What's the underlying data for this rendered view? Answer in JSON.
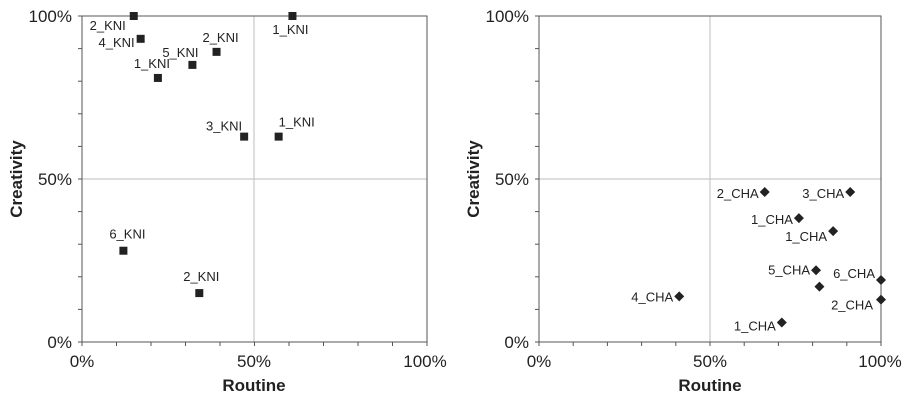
{
  "chart_data": [
    {
      "type": "scatter",
      "marker": "square",
      "color": "#222222",
      "xlabel": "Routine",
      "ylabel": "Creativity",
      "xlim": [
        0,
        100
      ],
      "ylim": [
        0,
        100
      ],
      "x_ticks": [
        "0%",
        "50%",
        "100%"
      ],
      "y_ticks": [
        "0%",
        "50%",
        "100%"
      ],
      "grid": "center lines only",
      "points": [
        {
          "label": "2_KNI",
          "x": 15,
          "y": 100
        },
        {
          "label": "1_KNI",
          "x": 61,
          "y": 100
        },
        {
          "label": "4_KNI",
          "x": 17,
          "y": 93
        },
        {
          "label": "2_KNI",
          "x": 39,
          "y": 89
        },
        {
          "label": "5_KNI",
          "x": 32,
          "y": 85
        },
        {
          "label": "1_KNI",
          "x": 22,
          "y": 81
        },
        {
          "label": "3_KNI",
          "x": 47,
          "y": 63
        },
        {
          "label": "1_KNI",
          "x": 57,
          "y": 63
        },
        {
          "label": "6_KNI",
          "x": 12,
          "y": 28
        },
        {
          "label": "2_KNI",
          "x": 34,
          "y": 15
        }
      ]
    },
    {
      "type": "scatter",
      "marker": "diamond",
      "color": "#222222",
      "xlabel": "Routine",
      "ylabel": "Creativity",
      "xlim": [
        0,
        100
      ],
      "ylim": [
        0,
        100
      ],
      "x_ticks": [
        "0%",
        "50%",
        "100%"
      ],
      "y_ticks": [
        "0%",
        "50%",
        "100%"
      ],
      "grid": "center lines only",
      "points": [
        {
          "label": "2_CHA",
          "x": 66,
          "y": 46
        },
        {
          "label": "3_CHA",
          "x": 91,
          "y": 46
        },
        {
          "label": "1_CHA",
          "x": 76,
          "y": 38
        },
        {
          "label": "1_CHA",
          "x": 86,
          "y": 34
        },
        {
          "label": "5_CHA",
          "x": 81,
          "y": 22
        },
        {
          "label": "6_CHA",
          "x": 100,
          "y": 19
        },
        {
          "label": "2_CHA",
          "x": 82,
          "y": 17
        },
        {
          "label": "2_CHA",
          "x": 100,
          "y": 13
        },
        {
          "label": "4_CHA",
          "x": 41,
          "y": 14
        },
        {
          "label": "1_CHA",
          "x": 71,
          "y": 6
        }
      ]
    }
  ]
}
